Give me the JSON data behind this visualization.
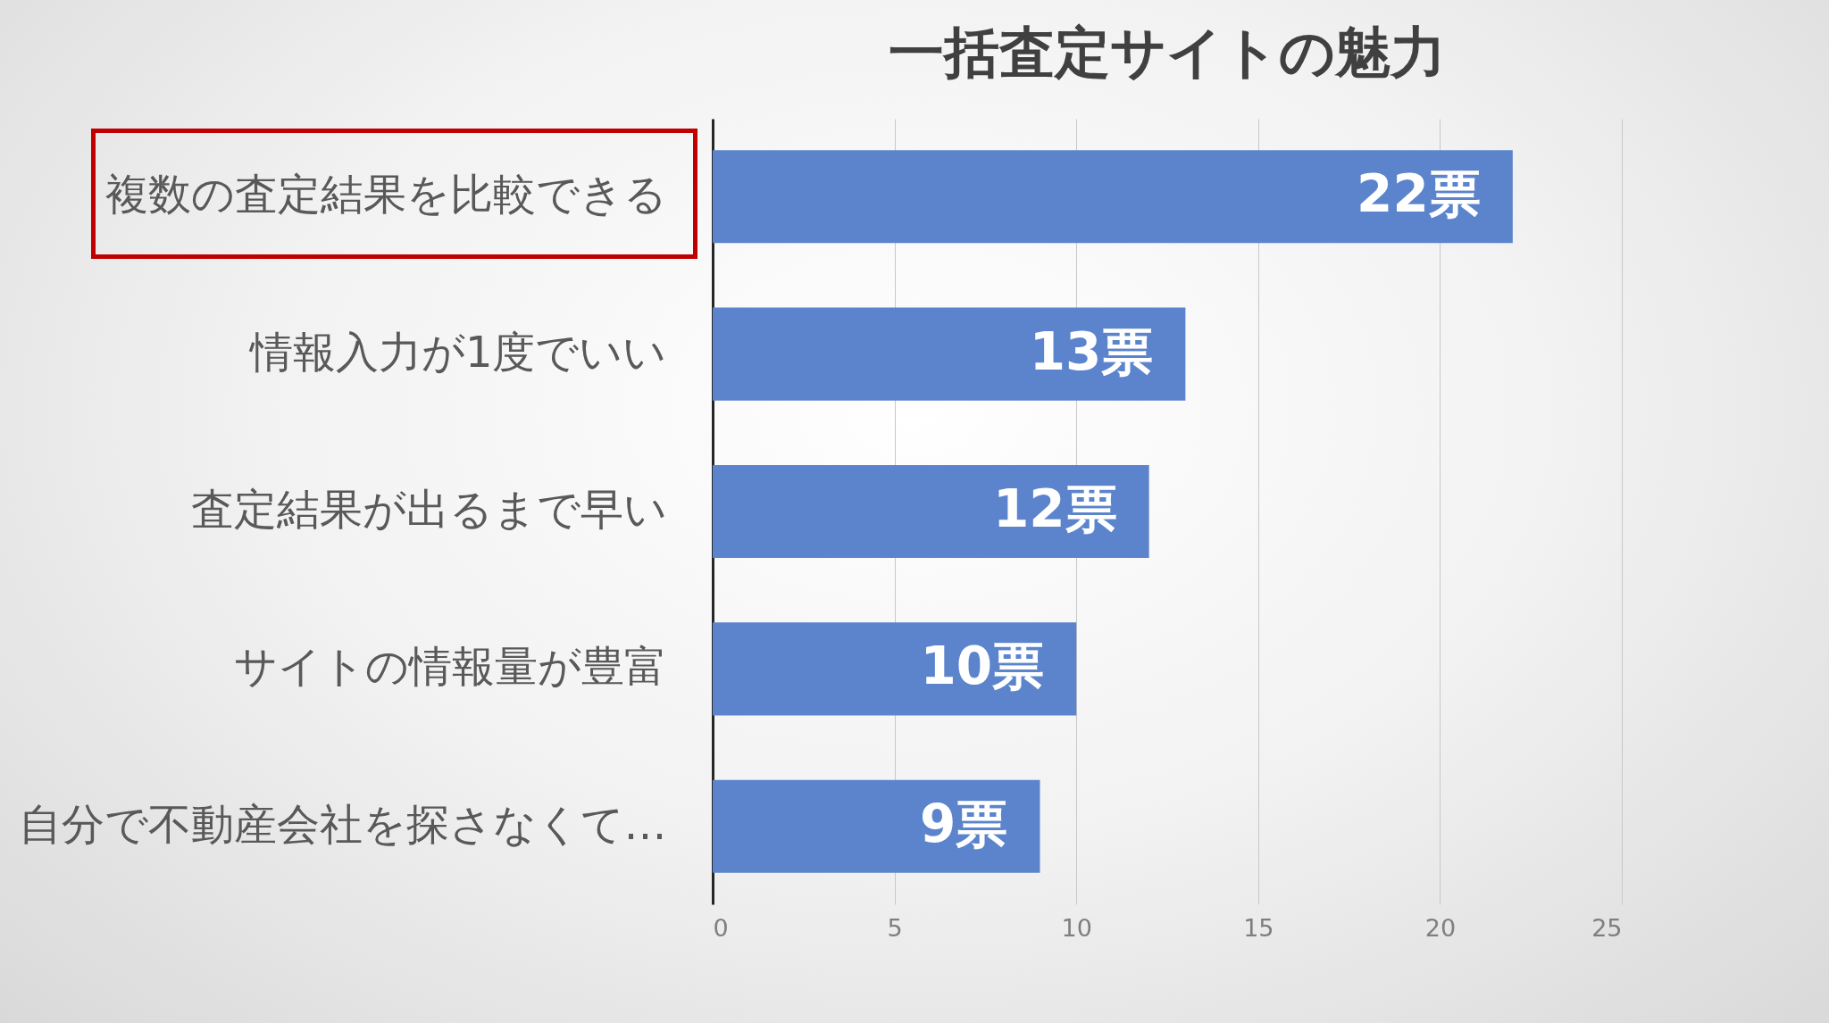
{
  "chart_data": {
    "type": "bar",
    "orientation": "horizontal",
    "title": "一括査定サイトの魅力",
    "categories": [
      "複数の査定結果を比較できる",
      "情報入力が1度でいい",
      "査定結果が出るまで早い",
      "サイトの情報量が豊富",
      "自分で不動産会社を探さなくて…"
    ],
    "values": [
      22,
      13,
      12,
      10,
      9
    ],
    "value_labels": [
      "22票",
      "13票",
      "12票",
      "10票",
      "9票"
    ],
    "color": "#5b84cc",
    "xlim": [
      0,
      25
    ],
    "xticks": [
      0,
      5,
      10,
      15,
      20,
      25
    ],
    "grid": "x"
  }
}
